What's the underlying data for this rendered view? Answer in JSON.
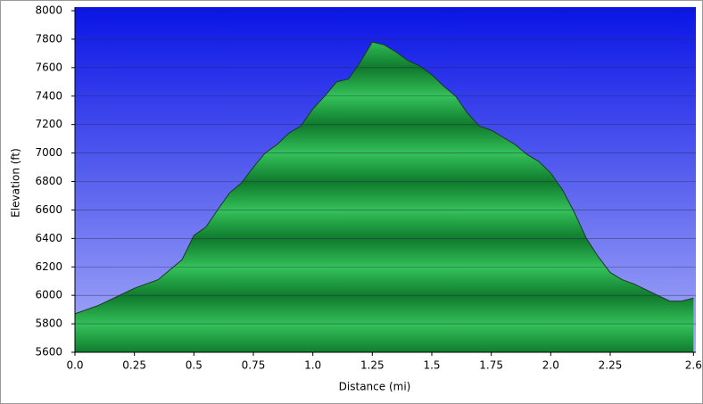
{
  "chart_data": {
    "type": "area",
    "x_label": "Distance    (mi)",
    "y_label": "Elevation (ft)",
    "x": [
      0,
      0.1,
      0.2,
      0.25,
      0.35,
      0.45,
      0.5,
      0.55,
      0.6,
      0.65,
      0.7,
      0.75,
      0.8,
      0.85,
      0.9,
      0.95,
      1.0,
      1.05,
      1.1,
      1.15,
      1.2,
      1.25,
      1.3,
      1.35,
      1.4,
      1.45,
      1.5,
      1.55,
      1.6,
      1.65,
      1.7,
      1.75,
      1.8,
      1.85,
      1.9,
      1.95,
      2.0,
      2.05,
      2.1,
      2.15,
      2.2,
      2.25,
      2.3,
      2.35,
      2.4,
      2.45,
      2.5,
      2.55,
      2.6
    ],
    "values": [
      5870,
      5930,
      6010,
      6050,
      6110,
      6250,
      6420,
      6480,
      6600,
      6720,
      6790,
      6900,
      7000,
      7060,
      7140,
      7190,
      7310,
      7400,
      7500,
      7520,
      7640,
      7780,
      7760,
      7710,
      7650,
      7610,
      7550,
      7470,
      7400,
      7280,
      7190,
      7160,
      7110,
      7060,
      6990,
      6940,
      6860,
      6740,
      6580,
      6400,
      6270,
      6160,
      6110,
      6080,
      6040,
      6000,
      5960,
      5960,
      5980
    ],
    "color": "#1fa040",
    "xlim": [
      0,
      2.61
    ],
    "ylim": [
      5600,
      8000
    ],
    "xticks": [
      {
        "value": 0,
        "label": "0.0"
      },
      0.25,
      0.5,
      0.75,
      {
        "value": 1,
        "label": "1.0"
      },
      1.25,
      1.5,
      1.75,
      {
        "value": 2,
        "label": "2.0"
      },
      2.25,
      2.6
    ],
    "yticks": [
      5600,
      5800,
      6000,
      6200,
      6400,
      6600,
      6800,
      7000,
      7200,
      7400,
      7600,
      7800,
      8000
    ],
    "grid": true
  }
}
